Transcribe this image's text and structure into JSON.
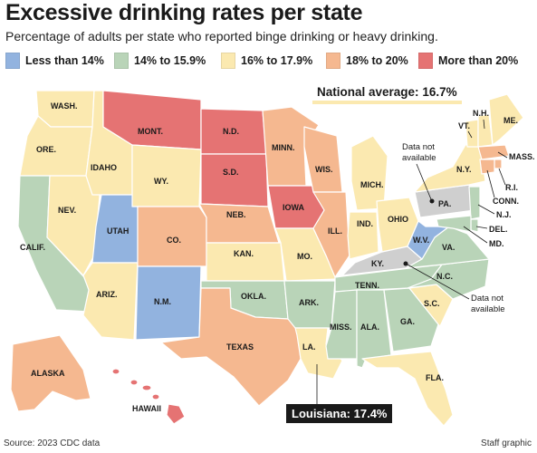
{
  "title": "Excessive drinking rates per state",
  "subtitle": "Percentage of adults per state who reported binge drinking or heavy drinking.",
  "legend": [
    {
      "label": "Less than 14%",
      "color": "#92b3df"
    },
    {
      "label": "14% to 15.9%",
      "color": "#b9d4b8"
    },
    {
      "label": "16% to 17.9%",
      "color": "#fbe9b0"
    },
    {
      "label": "18% to 20%",
      "color": "#f5b890"
    },
    {
      "label": "More than 20%",
      "color": "#e57373"
    }
  ],
  "no_data_color": "#cfcfcf",
  "national_average": {
    "label": "National average:",
    "value": "16.7%"
  },
  "notes": {
    "no_data_1": [
      "Data not",
      "available"
    ],
    "no_data_2": [
      "Data not",
      "available"
    ]
  },
  "callout": "Louisiana: 17.4%",
  "source": "Source: 2023 CDC data",
  "credit": "Staff graphic",
  "states": [
    {
      "id": "wa",
      "label": "WASH.",
      "category": 2
    },
    {
      "id": "or",
      "label": "ORE.",
      "category": 2
    },
    {
      "id": "ca",
      "label": "CALIF.",
      "category": 1
    },
    {
      "id": "nv",
      "label": "NEV.",
      "category": 2
    },
    {
      "id": "id",
      "label": "IDAHO",
      "category": 2
    },
    {
      "id": "mt",
      "label": "MONT.",
      "category": 4
    },
    {
      "id": "wy",
      "label": "WY.",
      "category": 2
    },
    {
      "id": "ut",
      "label": "UTAH",
      "category": 0
    },
    {
      "id": "az",
      "label": "ARIZ.",
      "category": 2
    },
    {
      "id": "co",
      "label": "CO.",
      "category": 3
    },
    {
      "id": "nm",
      "label": "N.M.",
      "category": 0
    },
    {
      "id": "nd",
      "label": "N.D.",
      "category": 4
    },
    {
      "id": "sd",
      "label": "S.D.",
      "category": 4
    },
    {
      "id": "ne",
      "label": "NEB.",
      "category": 3
    },
    {
      "id": "ks",
      "label": "KAN.",
      "category": 2
    },
    {
      "id": "ok",
      "label": "OKLA.",
      "category": 1
    },
    {
      "id": "tx",
      "label": "TEXAS",
      "category": 3
    },
    {
      "id": "mn",
      "label": "MINN.",
      "category": 3
    },
    {
      "id": "ia",
      "label": "IOWA",
      "category": 4
    },
    {
      "id": "mo",
      "label": "MO.",
      "category": 2
    },
    {
      "id": "ar",
      "label": "ARK.",
      "category": 1
    },
    {
      "id": "la",
      "label": "LA.",
      "category": 2
    },
    {
      "id": "wi",
      "label": "WIS.",
      "category": 3
    },
    {
      "id": "il",
      "label": "ILL.",
      "category": 3
    },
    {
      "id": "mi",
      "label": "MICH.",
      "category": 2
    },
    {
      "id": "in",
      "label": "IND.",
      "category": 2
    },
    {
      "id": "oh",
      "label": "OHIO",
      "category": 2
    },
    {
      "id": "ky",
      "label": "KY.",
      "category": -1
    },
    {
      "id": "tn",
      "label": "TENN.",
      "category": 1
    },
    {
      "id": "ms",
      "label": "MISS.",
      "category": 1
    },
    {
      "id": "al",
      "label": "ALA.",
      "category": 1
    },
    {
      "id": "ga",
      "label": "GA.",
      "category": 1
    },
    {
      "id": "fl",
      "label": "FLA.",
      "category": 2
    },
    {
      "id": "sc",
      "label": "S.C.",
      "category": 2
    },
    {
      "id": "nc",
      "label": "N.C.",
      "category": 1
    },
    {
      "id": "va",
      "label": "VA.",
      "category": 1
    },
    {
      "id": "wv",
      "label": "W.V.",
      "category": 0
    },
    {
      "id": "pa",
      "label": "PA.",
      "category": -1
    },
    {
      "id": "ny",
      "label": "N.Y.",
      "category": 2
    },
    {
      "id": "vt",
      "label": "VT.",
      "category": 2
    },
    {
      "id": "nh",
      "label": "N.H.",
      "category": 2
    },
    {
      "id": "me",
      "label": "ME.",
      "category": 2
    },
    {
      "id": "ma",
      "label": "MASS.",
      "category": 3
    },
    {
      "id": "ri",
      "label": "R.I.",
      "category": 3
    },
    {
      "id": "ct",
      "label": "CONN.",
      "category": 3
    },
    {
      "id": "nj",
      "label": "N.J.",
      "category": 1
    },
    {
      "id": "de",
      "label": "DEL.",
      "category": 1
    },
    {
      "id": "md",
      "label": "MD.",
      "category": 1
    },
    {
      "id": "ak",
      "label": "ALASKA",
      "category": 3
    },
    {
      "id": "hi",
      "label": "HAWAII",
      "category": 4
    }
  ]
}
